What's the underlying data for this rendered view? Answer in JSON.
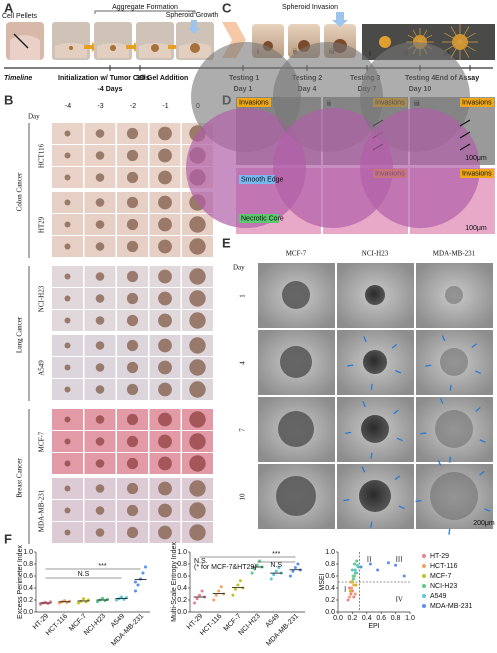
{
  "panels": {
    "a": {
      "label": "A",
      "cell_pellets": "Cell Pellets",
      "aggregate": "Aggregate Formation",
      "growth": "Spheroid Growth"
    },
    "c": {
      "label": "C",
      "invasion": "Spheroid Invasion",
      "stages": [
        "i",
        "ii",
        "iii"
      ],
      "insets": [
        "i",
        "ii",
        "iii"
      ]
    },
    "timeline": {
      "title": "Timeline",
      "events": [
        "Initialization w/ Tumor Cells",
        "3D Gel Addition",
        "Testing 1",
        "Testing 2",
        "Testing 3",
        "Testing 4",
        "End of Assay"
      ],
      "days": [
        "-4 Days",
        "Day 1",
        "Day 4",
        "Day 7",
        "Day 10"
      ]
    },
    "b": {
      "label": "B",
      "day": "Day",
      "columns": [
        "-4",
        "-3",
        "-2",
        "-1",
        "0"
      ],
      "groups": [
        {
          "name": "Colon Cancer",
          "lines": [
            "HCT116",
            "HT29"
          ]
        },
        {
          "name": "Lung Cancer",
          "lines": [
            "NCI-H23",
            "A549"
          ]
        },
        {
          "name": "Breast Cancer",
          "lines": [
            "MCF-7",
            "MDA-MB-231"
          ]
        }
      ]
    },
    "d": {
      "label": "D",
      "numerals": [
        "i",
        "ii",
        "iii"
      ],
      "invasions": "Invasions",
      "smooth_edge": "Smooth Edge",
      "necrotic_core": "Necrotic Core",
      "scale": "100μm"
    },
    "e": {
      "label": "E",
      "columns": [
        "MCF-7",
        "NCI-H23",
        "MDA-MB-231"
      ],
      "day": "Day",
      "rows": [
        "1",
        "4",
        "7",
        "10"
      ],
      "scale": "200μm"
    },
    "f": {
      "label": "F",
      "plots": [
        {
          "type": "dot",
          "y_label": "Excess Perimeter Index",
          "categories": [
            "HT-29",
            "HCT-116",
            "MCF-7",
            "NCI-H23",
            "A549",
            "MDA-MB-231"
          ],
          "colors": [
            "#ef7f8f",
            "#f4a060",
            "#c8c020",
            "#5cc890",
            "#5cc8d8",
            "#5a8ef0"
          ],
          "ylim": [
            0,
            1.0
          ],
          "yticks": [
            {
              "value": 0,
              "label": "0.0"
            },
            {
              "value": 0.2,
              "label": "0.2"
            },
            {
              "value": 0.4,
              "label": "0.4"
            },
            {
              "value": 0.6,
              "label": "0.6"
            },
            {
              "value": 0.8,
              "label": "0.8"
            },
            {
              "value": 1.0,
              "label": "1.0"
            }
          ],
          "annotations": [
            "N.S",
            "***"
          ],
          "values": [
            [
              0.13,
              0.15,
              0.16,
              0.14,
              0.17
            ],
            [
              0.15,
              0.17,
              0.19,
              0.16,
              0.18
            ],
            [
              0.15,
              0.18,
              0.22,
              0.17,
              0.2
            ],
            [
              0.17,
              0.2,
              0.23,
              0.19,
              0.21
            ],
            [
              0.2,
              0.22,
              0.25,
              0.21,
              0.24
            ],
            [
              0.35,
              0.45,
              0.55,
              0.65,
              0.75,
              0.5
            ]
          ]
        },
        {
          "type": "dot",
          "y_label": "Multi-Scale Entropy Index",
          "categories": [
            "HT-29",
            "HCT-116",
            "MCF-7",
            "NCI-H23",
            "A549",
            "MDA-MB-231"
          ],
          "colors": [
            "#ef7f8f",
            "#f4a060",
            "#c8c020",
            "#5cc890",
            "#5cc8d8",
            "#5a8ef0"
          ],
          "ylim": [
            0,
            1.0
          ],
          "yticks": [
            {
              "value": 0,
              "label": "0.0"
            },
            {
              "value": 0.2,
              "label": "0.2"
            },
            {
              "value": 0.4,
              "label": "0.4"
            },
            {
              "value": 0.6,
              "label": "0.6"
            },
            {
              "value": 0.8,
              "label": "0.8"
            },
            {
              "value": 1.0,
              "label": "1.0"
            }
          ],
          "annotations": [
            "N.S.",
            "(* for MCF-7&HT29)",
            "***",
            "N.S"
          ],
          "values": [
            [
              0.15,
              0.22,
              0.28,
              0.35,
              0.25
            ],
            [
              0.2,
              0.28,
              0.35,
              0.42,
              0.3
            ],
            [
              0.28,
              0.38,
              0.45,
              0.52,
              0.4
            ],
            [
              0.65,
              0.72,
              0.78,
              0.85,
              0.75
            ],
            [
              0.55,
              0.62,
              0.68,
              0.74,
              0.65
            ],
            [
              0.6,
              0.68,
              0.74,
              0.8,
              0.7
            ]
          ]
        },
        {
          "type": "scatter",
          "x_label": "EPI",
          "y_label": "MSEI",
          "xlim": [
            0,
            1.0
          ],
          "ylim": [
            0,
            1.0
          ],
          "xticks": [
            {
              "value": 0,
              "label": "0.0"
            },
            {
              "value": 0.2,
              "label": "0.2"
            },
            {
              "value": 0.4,
              "label": "0.4"
            },
            {
              "value": 0.6,
              "label": "0.6"
            },
            {
              "value": 0.8,
              "label": "0.8"
            },
            {
              "value": 1.0,
              "label": "1.0"
            }
          ],
          "yticks": [
            {
              "value": 0,
              "label": "0.0"
            },
            {
              "value": 0.2,
              "label": "0.2"
            },
            {
              "value": 0.4,
              "label": "0.4"
            },
            {
              "value": 0.6,
              "label": "0.6"
            },
            {
              "value": 0.8,
              "label": "0.8"
            },
            {
              "value": 1.0,
              "label": "1.0"
            }
          ],
          "thresholds": {
            "x": 0.3,
            "y": 0.5
          },
          "quadrants": [
            "I",
            "II",
            "III",
            "IV"
          ],
          "series": [
            {
              "name": "HT-29",
              "color": "#ef7f8f",
              "x": [
                0.14,
                0.18,
                0.2,
                0.22,
                0.16
              ],
              "y": [
                0.2,
                0.3,
                0.35,
                0.25,
                0.4
              ]
            },
            {
              "name": "HCT-116",
              "color": "#f4a060",
              "x": [
                0.16,
                0.19,
                0.22,
                0.24,
                0.18
              ],
              "y": [
                0.25,
                0.4,
                0.45,
                0.3,
                0.5
              ]
            },
            {
              "name": "MCF-7",
              "color": "#c8c020",
              "x": [
                0.17,
                0.2,
                0.23,
                0.25,
                0.21
              ],
              "y": [
                0.35,
                0.5,
                0.6,
                0.45,
                0.55
              ]
            },
            {
              "name": "NCI-H23",
              "color": "#5cc890",
              "x": [
                0.2,
                0.23,
                0.26,
                0.28,
                0.24
              ],
              "y": [
                0.7,
                0.8,
                0.85,
                0.75,
                0.65
              ]
            },
            {
              "name": "A549",
              "color": "#5cc8d8",
              "x": [
                0.21,
                0.24,
                0.27,
                0.22,
                0.26
              ],
              "y": [
                0.6,
                0.7,
                0.78,
                0.55,
                0.65
              ]
            },
            {
              "name": "MDA-MB-231",
              "color": "#5a8ef0",
              "x": [
                0.32,
                0.45,
                0.55,
                0.7,
                0.8,
                0.92
              ],
              "y": [
                0.75,
                0.8,
                0.7,
                0.82,
                0.78,
                0.6
              ]
            }
          ]
        }
      ]
    }
  }
}
